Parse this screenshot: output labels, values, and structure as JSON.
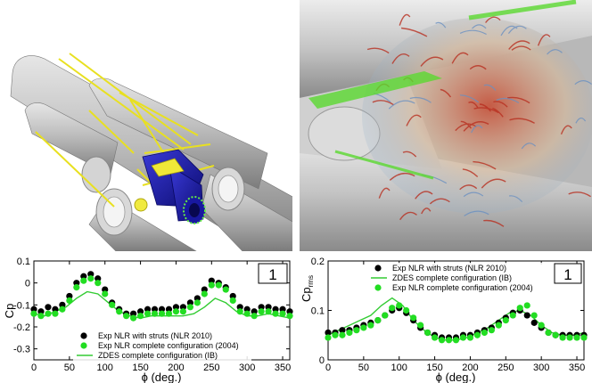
{
  "colors": {
    "exp_struts": "#000000",
    "exp_complete": "#22dd22",
    "zdes": "#33cc33",
    "render_grey": "#b4b4b4",
    "strut_yellow": "#e8e020",
    "nozzle_blue": "#1a1aa8",
    "wake_red": "#c83020",
    "wake_blue": "#8aaed0"
  },
  "renders": [
    {
      "name": "launcher-afterbody-geometry",
      "icons": [
        "booster-icon",
        "strut-icon",
        "nozzle-icon"
      ]
    },
    {
      "name": "afterbody-wake-flowfield",
      "icons": [
        "vortex-structures-icon"
      ]
    }
  ],
  "chart_data": [
    {
      "type": "scatter",
      "panel_label": "1",
      "ylabel_base": "Cp",
      "ylabel_sub": "",
      "xlabel": "ϕ (deg.)",
      "xlim": [
        0,
        360
      ],
      "ylim": [
        -0.35,
        0.1
      ],
      "xticks": [
        0,
        50,
        100,
        150,
        200,
        250,
        300,
        350
      ],
      "yticks": [
        0.1,
        0,
        -0.1,
        -0.2,
        -0.3
      ],
      "ytick_labels": [
        "0.1",
        "0",
        "-0.1",
        "-0.2",
        "-0.3"
      ],
      "legend_position": "bottom-center",
      "legend": [
        {
          "label": "Exp NLR with struts (NLR 2010)",
          "kind": "marker",
          "color": "#000000"
        },
        {
          "label": "Exp NLR complete configuration (2004)",
          "kind": "marker",
          "color": "#22dd22"
        },
        {
          "label": "ZDES complete configuration (IB)",
          "kind": "line",
          "color": "#33cc33"
        }
      ],
      "series": [
        {
          "kind": "marker",
          "color": "#000000",
          "x": [
            0,
            10,
            20,
            30,
            40,
            50,
            60,
            70,
            80,
            90,
            100,
            110,
            120,
            130,
            140,
            150,
            160,
            170,
            180,
            190,
            200,
            210,
            220,
            230,
            240,
            250,
            260,
            270,
            280,
            290,
            300,
            310,
            320,
            330,
            340,
            350,
            360
          ],
          "y": [
            -0.12,
            -0.13,
            -0.11,
            -0.12,
            -0.1,
            -0.06,
            0.0,
            0.03,
            0.04,
            0.02,
            -0.03,
            -0.09,
            -0.12,
            -0.14,
            -0.14,
            -0.13,
            -0.12,
            -0.12,
            -0.12,
            -0.12,
            -0.11,
            -0.11,
            -0.09,
            -0.07,
            -0.03,
            0.01,
            0.0,
            -0.02,
            -0.06,
            -0.11,
            -0.12,
            -0.13,
            -0.11,
            -0.11,
            -0.12,
            -0.12,
            -0.13
          ]
        },
        {
          "kind": "marker",
          "color": "#22dd22",
          "x": [
            0,
            10,
            20,
            30,
            40,
            50,
            60,
            70,
            80,
            90,
            100,
            110,
            120,
            130,
            140,
            150,
            160,
            170,
            180,
            190,
            200,
            210,
            220,
            230,
            240,
            250,
            260,
            270,
            280,
            290,
            300,
            310,
            320,
            330,
            340,
            350,
            360
          ],
          "y": [
            -0.14,
            -0.15,
            -0.14,
            -0.14,
            -0.12,
            -0.08,
            -0.02,
            0.01,
            0.02,
            0.0,
            -0.05,
            -0.1,
            -0.13,
            -0.15,
            -0.16,
            -0.15,
            -0.14,
            -0.14,
            -0.14,
            -0.14,
            -0.13,
            -0.13,
            -0.11,
            -0.09,
            -0.05,
            -0.01,
            -0.01,
            -0.03,
            -0.08,
            -0.13,
            -0.14,
            -0.15,
            -0.13,
            -0.13,
            -0.14,
            -0.14,
            -0.15
          ]
        },
        {
          "kind": "line",
          "color": "#33cc33",
          "x": [
            0,
            15,
            30,
            45,
            60,
            75,
            90,
            105,
            120,
            135,
            150,
            165,
            180,
            195,
            210,
            225,
            240,
            255,
            270,
            285,
            300,
            315,
            330,
            345,
            360
          ],
          "y": [
            -0.14,
            -0.15,
            -0.13,
            -0.11,
            -0.07,
            -0.04,
            -0.05,
            -0.09,
            -0.13,
            -0.15,
            -0.16,
            -0.15,
            -0.15,
            -0.15,
            -0.15,
            -0.14,
            -0.11,
            -0.07,
            -0.09,
            -0.13,
            -0.15,
            -0.15,
            -0.14,
            -0.15,
            -0.16
          ]
        }
      ]
    },
    {
      "type": "scatter",
      "panel_label": "1",
      "ylabel_base": "Cp",
      "ylabel_sub": "rms",
      "xlabel": "ϕ (deg.)",
      "xlim": [
        0,
        360
      ],
      "ylim": [
        0,
        0.2
      ],
      "xticks": [
        0,
        50,
        100,
        150,
        200,
        250,
        300,
        350
      ],
      "yticks": [
        0,
        0.1,
        0.2
      ],
      "ytick_labels": [
        "0",
        "0.1",
        "0.2"
      ],
      "legend_position": "top-center",
      "legend": [
        {
          "label": "Exp NLR with struts (NLR 2010)",
          "kind": "marker",
          "color": "#000000"
        },
        {
          "label": "ZDES complete configuration (IB)",
          "kind": "line",
          "color": "#33cc33"
        },
        {
          "label": "Exp NLR complete configuration (2004)",
          "kind": "marker",
          "color": "#22dd22"
        }
      ],
      "series": [
        {
          "kind": "marker",
          "color": "#000000",
          "x": [
            0,
            10,
            20,
            30,
            40,
            50,
            60,
            70,
            80,
            90,
            100,
            110,
            120,
            130,
            140,
            150,
            160,
            170,
            180,
            190,
            200,
            210,
            220,
            230,
            240,
            250,
            260,
            270,
            280,
            290,
            300,
            310,
            320,
            330,
            340,
            350,
            360
          ],
          "y": [
            0.055,
            0.055,
            0.06,
            0.06,
            0.065,
            0.07,
            0.075,
            0.08,
            0.09,
            0.1,
            0.105,
            0.095,
            0.08,
            0.065,
            0.055,
            0.05,
            0.045,
            0.045,
            0.045,
            0.05,
            0.05,
            0.055,
            0.06,
            0.065,
            0.075,
            0.085,
            0.095,
            0.1,
            0.09,
            0.075,
            0.065,
            0.055,
            0.05,
            0.05,
            0.05,
            0.05,
            0.05
          ]
        },
        {
          "kind": "marker",
          "color": "#22dd22",
          "x": [
            0,
            10,
            20,
            30,
            40,
            50,
            60,
            70,
            80,
            90,
            100,
            110,
            120,
            130,
            140,
            150,
            160,
            170,
            180,
            190,
            200,
            210,
            220,
            230,
            240,
            250,
            260,
            270,
            280,
            290,
            300,
            310,
            320,
            330,
            340,
            350,
            360
          ],
          "y": [
            0.045,
            0.05,
            0.05,
            0.055,
            0.06,
            0.065,
            0.07,
            0.08,
            0.09,
            0.105,
            0.11,
            0.1,
            0.085,
            0.07,
            0.055,
            0.045,
            0.04,
            0.04,
            0.04,
            0.045,
            0.045,
            0.05,
            0.055,
            0.06,
            0.07,
            0.08,
            0.09,
            0.105,
            0.11,
            0.09,
            0.07,
            0.055,
            0.05,
            0.045,
            0.045,
            0.045,
            0.045
          ]
        },
        {
          "kind": "line",
          "color": "#33cc33",
          "x": [
            0,
            15,
            30,
            45,
            60,
            75,
            90,
            105,
            120,
            135,
            150,
            165,
            180,
            195,
            210,
            225,
            240,
            255,
            270,
            285,
            300,
            315,
            330,
            345,
            360
          ],
          "y": [
            0.05,
            0.06,
            0.07,
            0.08,
            0.09,
            0.11,
            0.125,
            0.11,
            0.08,
            0.06,
            0.045,
            0.04,
            0.04,
            0.045,
            0.055,
            0.065,
            0.08,
            0.095,
            0.1,
            0.09,
            0.07,
            0.055,
            0.05,
            0.05,
            0.055
          ]
        }
      ]
    }
  ]
}
